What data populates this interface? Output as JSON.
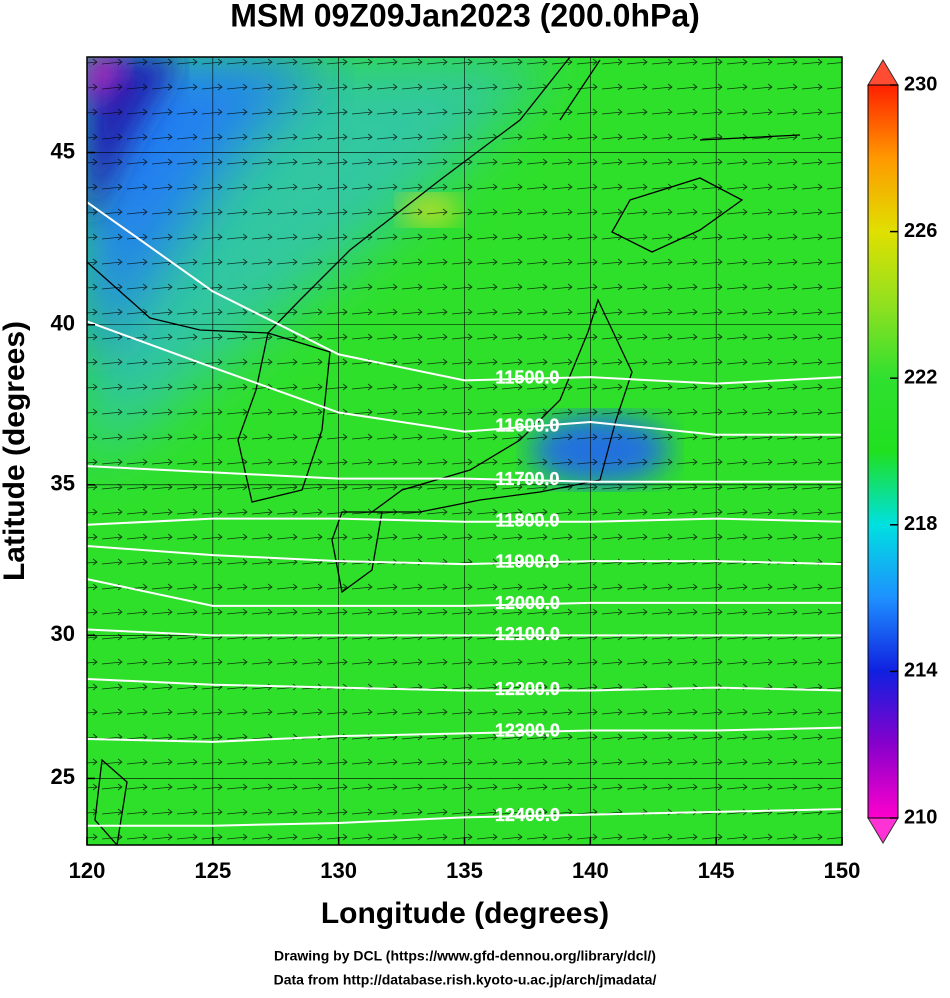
{
  "chart_data": {
    "type": "contour-map",
    "title": "MSM 09Z09Jan2023 (200.0hPa)",
    "xlabel": "Longitude (degrees)",
    "ylabel": "Latitude  (degrees)",
    "credits": [
      "Drawing by DCL (https://www.gfd-dennou.org/library/dcl/)",
      "Data from http://database.rish.kyoto-u.ac.jp/arch/jmadata/"
    ],
    "xlim": [
      120,
      150
    ],
    "ylim": [
      22.6,
      47.6
    ],
    "xticks": [
      120,
      125,
      130,
      135,
      140,
      145,
      150
    ],
    "yticks": [
      25,
      30,
      35,
      40,
      45
    ],
    "projection": "mercator",
    "grid": true,
    "x": [
      120,
      125,
      130,
      135,
      140,
      145,
      150
    ],
    "contours": [
      {
        "level": 11500,
        "label": "11500.0",
        "lats": [
          43.6,
          41.0,
          39.1,
          38.3,
          38.4,
          38.2,
          38.4
        ]
      },
      {
        "level": 11600,
        "label": "11600.0",
        "lats": [
          40.1,
          38.7,
          37.3,
          36.7,
          37.0,
          36.6,
          36.6
        ]
      },
      {
        "level": 11700,
        "label": "11700.0",
        "lats": [
          35.6,
          35.4,
          35.2,
          35.2,
          35.1,
          35.1,
          35.1
        ]
      },
      {
        "level": 11800,
        "label": "11800.0",
        "lats": [
          33.7,
          33.9,
          33.9,
          33.8,
          33.8,
          33.9,
          33.8
        ]
      },
      {
        "level": 11900,
        "label": "11900.0",
        "lats": [
          33.0,
          32.7,
          32.5,
          32.4,
          32.5,
          32.5,
          32.4
        ]
      },
      {
        "level": 12000,
        "label": "12000.0",
        "lats": [
          31.9,
          31.0,
          31.0,
          31.0,
          31.1,
          31.1,
          31.1
        ]
      },
      {
        "level": 12100,
        "label": "12100.0",
        "lats": [
          30.2,
          30.0,
          30.0,
          30.0,
          30.0,
          30.0,
          30.0
        ]
      },
      {
        "level": 12200,
        "label": "12200.0",
        "lats": [
          28.5,
          28.3,
          28.2,
          28.1,
          28.1,
          28.2,
          28.1
        ]
      },
      {
        "level": 12300,
        "label": "12300.0",
        "lats": [
          26.4,
          26.3,
          26.5,
          26.6,
          26.7,
          26.7,
          26.8
        ]
      },
      {
        "level": 12400,
        "label": "12400.0",
        "lats": [
          23.3,
          23.3,
          23.4,
          23.6,
          23.7,
          23.8,
          23.9
        ]
      }
    ],
    "colorbar": {
      "lim": [
        210,
        230
      ],
      "ticks": [
        210,
        214,
        218,
        222,
        226,
        230
      ],
      "colors": [
        "#ff00cc",
        "#8800cc",
        "#1020e0",
        "#1e90ff",
        "#00e0e0",
        "#20e020",
        "#30e030",
        "#90e020",
        "#e0e000",
        "#ff9900",
        "#ff2000"
      ]
    }
  }
}
